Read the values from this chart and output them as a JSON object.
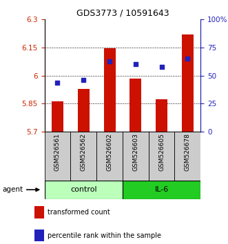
{
  "title": "GDS3773 / 10591643",
  "samples": [
    "GSM526561",
    "GSM526562",
    "GSM526602",
    "GSM526603",
    "GSM526605",
    "GSM526678"
  ],
  "bar_values": [
    5.862,
    5.928,
    6.148,
    5.985,
    5.872,
    6.22
  ],
  "bar_base": 5.7,
  "percentile_values": [
    44,
    46,
    63,
    60,
    58,
    65
  ],
  "ylim_left": [
    5.7,
    6.3
  ],
  "ylim_right": [
    0,
    100
  ],
  "yticks_left": [
    5.7,
    5.85,
    6.0,
    6.15,
    6.3
  ],
  "yticks_right": [
    0,
    25,
    50,
    75,
    100
  ],
  "ytick_labels_left": [
    "5.7",
    "5.85",
    "6",
    "6.15",
    "6.3"
  ],
  "ytick_labels_right": [
    "0",
    "25",
    "50",
    "75",
    "100%"
  ],
  "hlines": [
    5.85,
    6.0,
    6.15
  ],
  "bar_color": "#cc1100",
  "dot_color": "#2222bb",
  "groups": [
    {
      "label": "control",
      "indices": [
        0,
        1,
        2
      ],
      "color": "#bbffbb"
    },
    {
      "label": "IL-6",
      "indices": [
        3,
        4,
        5
      ],
      "color": "#22cc22"
    }
  ],
  "agent_label": "agent",
  "left_axis_color": "#cc2200",
  "right_axis_color": "#2222bb",
  "bar_width": 0.45,
  "dot_size": 18,
  "legend_items": [
    {
      "color": "#cc1100",
      "label": "transformed count"
    },
    {
      "color": "#2222bb",
      "label": "percentile rank within the sample"
    }
  ]
}
